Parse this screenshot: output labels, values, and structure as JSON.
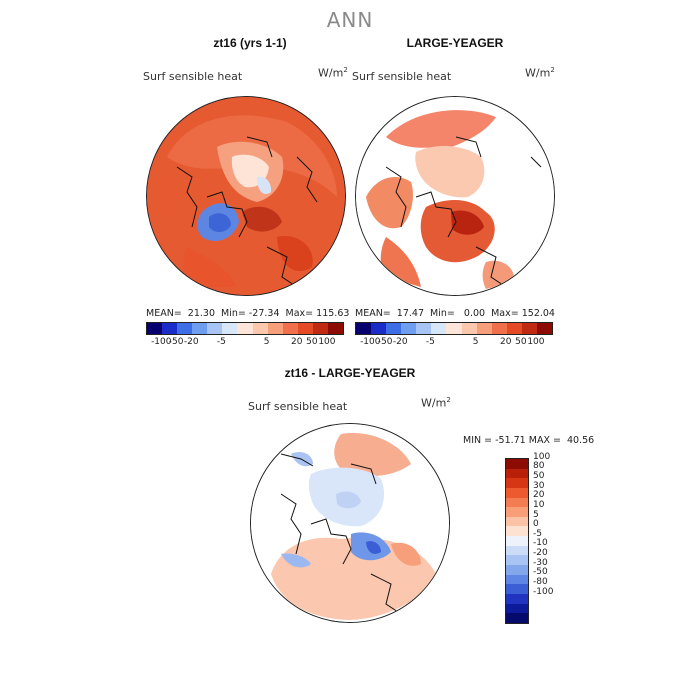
{
  "title": "ANN",
  "panels": [
    {
      "subtitle": "zt16 (yrs 1-1)",
      "field": "Surf sensible heat",
      "units": "W/m",
      "units_exp": "2",
      "stats": "MEAN=  21.30  Min= -27.34  Max= 115.63"
    },
    {
      "subtitle": "LARGE-YEAGER",
      "field": "Surf sensible heat",
      "units": "W/m",
      "units_exp": "2",
      "stats": "MEAN=  17.47  Min=   0.00  Max= 152.04"
    },
    {
      "subtitle": "zt16 - LARGE-YEAGER",
      "field": "Surf sensible heat",
      "units": "W/m",
      "units_exp": "2",
      "stats": "MIN = -51.71 MAX =  40.56"
    }
  ],
  "colorbar_h": {
    "colors": [
      "#08006e",
      "#1a2dc8",
      "#3d6ee6",
      "#6f9df0",
      "#a8c4f5",
      "#d8e6fa",
      "#fde6d8",
      "#fbc7ad",
      "#f79e7a",
      "#f0704b",
      "#e54a26",
      "#c02a10",
      "#8c0c04"
    ],
    "tick_labels": [
      "-100",
      "-50",
      "-20",
      "-5",
      "5",
      "20",
      "50",
      "100"
    ]
  },
  "colorbar_v": {
    "colors": [
      "#8c0c04",
      "#b8200a",
      "#d63614",
      "#ee5a30",
      "#f47c52",
      "#f89e78",
      "#fbc3a6",
      "#fde2d2",
      "#eef2fb",
      "#cddcf6",
      "#a9c3f2",
      "#84a7ec",
      "#5f86e4",
      "#3c5fd6",
      "#2034c0",
      "#0d1a9a",
      "#050a6c"
    ],
    "labels": [
      "100",
      "80",
      "50",
      "30",
      "20",
      "10",
      "5",
      "0",
      "-5",
      "-10",
      "-20",
      "-30",
      "-50",
      "-80",
      "-100"
    ]
  }
}
